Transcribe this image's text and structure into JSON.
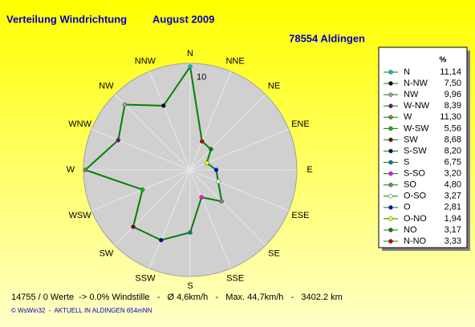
{
  "chart_data": {
    "type": "radar",
    "title": "Verteilung Windrichtung",
    "subtitle": "August 2009",
    "location": "78554 Aldingen",
    "categories": [
      "N",
      "NNE",
      "NE",
      "ENE",
      "E",
      "ESE",
      "SE",
      "SSE",
      "S",
      "SSW",
      "SW",
      "WSW",
      "W",
      "WNW",
      "NW",
      "NNW"
    ],
    "rlim": [
      0,
      11.5
    ],
    "rticks": [
      10
    ],
    "line_color": "#008000",
    "legend_header": "%",
    "series": [
      {
        "name": "N",
        "color": "#00c0c0",
        "value": 11.14,
        "value_label": "11,14"
      },
      {
        "name": "N-NW",
        "color": "#000000",
        "value": 7.5,
        "value_label": "7,50"
      },
      {
        "name": "NW",
        "color": "#a0a0a0",
        "value": 9.96,
        "value_label": "9,96"
      },
      {
        "name": "W-NW",
        "color": "#800080",
        "value": 8.39,
        "value_label": "8,39"
      },
      {
        "name": "W",
        "color": "#808040",
        "value": 11.3,
        "value_label": "11,30"
      },
      {
        "name": "W-SW",
        "color": "#00c000",
        "value": 5.56,
        "value_label": "5,56"
      },
      {
        "name": "SW",
        "color": "#800000",
        "value": 8.68,
        "value_label": "8,68"
      },
      {
        "name": "S-SW",
        "color": "#000080",
        "value": 8.2,
        "value_label": "8,20"
      },
      {
        "name": "S",
        "color": "#008080",
        "value": 6.75,
        "value_label": "6,75"
      },
      {
        "name": "S-SO",
        "color": "#ff00ff",
        "value": 3.2,
        "value_label": "3,20"
      },
      {
        "name": "SO",
        "color": "#808080",
        "value": 4.8,
        "value_label": "4,80"
      },
      {
        "name": "O-SO",
        "color": "#ffffff",
        "value": 3.27,
        "value_label": "3,27"
      },
      {
        "name": "O",
        "color": "#0000ff",
        "value": 2.81,
        "value_label": "2,81"
      },
      {
        "name": "O-NO",
        "color": "#ffff00",
        "value": 1.94,
        "value_label": "1,94"
      },
      {
        "name": "NO",
        "color": "#008000",
        "value": 3.17,
        "value_label": "3,17"
      },
      {
        "name": "N-NO",
        "color": "#c00000",
        "value": 3.33,
        "value_label": "3,33"
      }
    ],
    "footer": "14755 / 0 Werte  -> 0.0% Windstille   -   Ø 4,6km/h   -   Max. 44,7km/h   -   3402.2 km",
    "credit": "© WsWin32  -  AKTUELL IN ALDINGEN 654mNN"
  }
}
